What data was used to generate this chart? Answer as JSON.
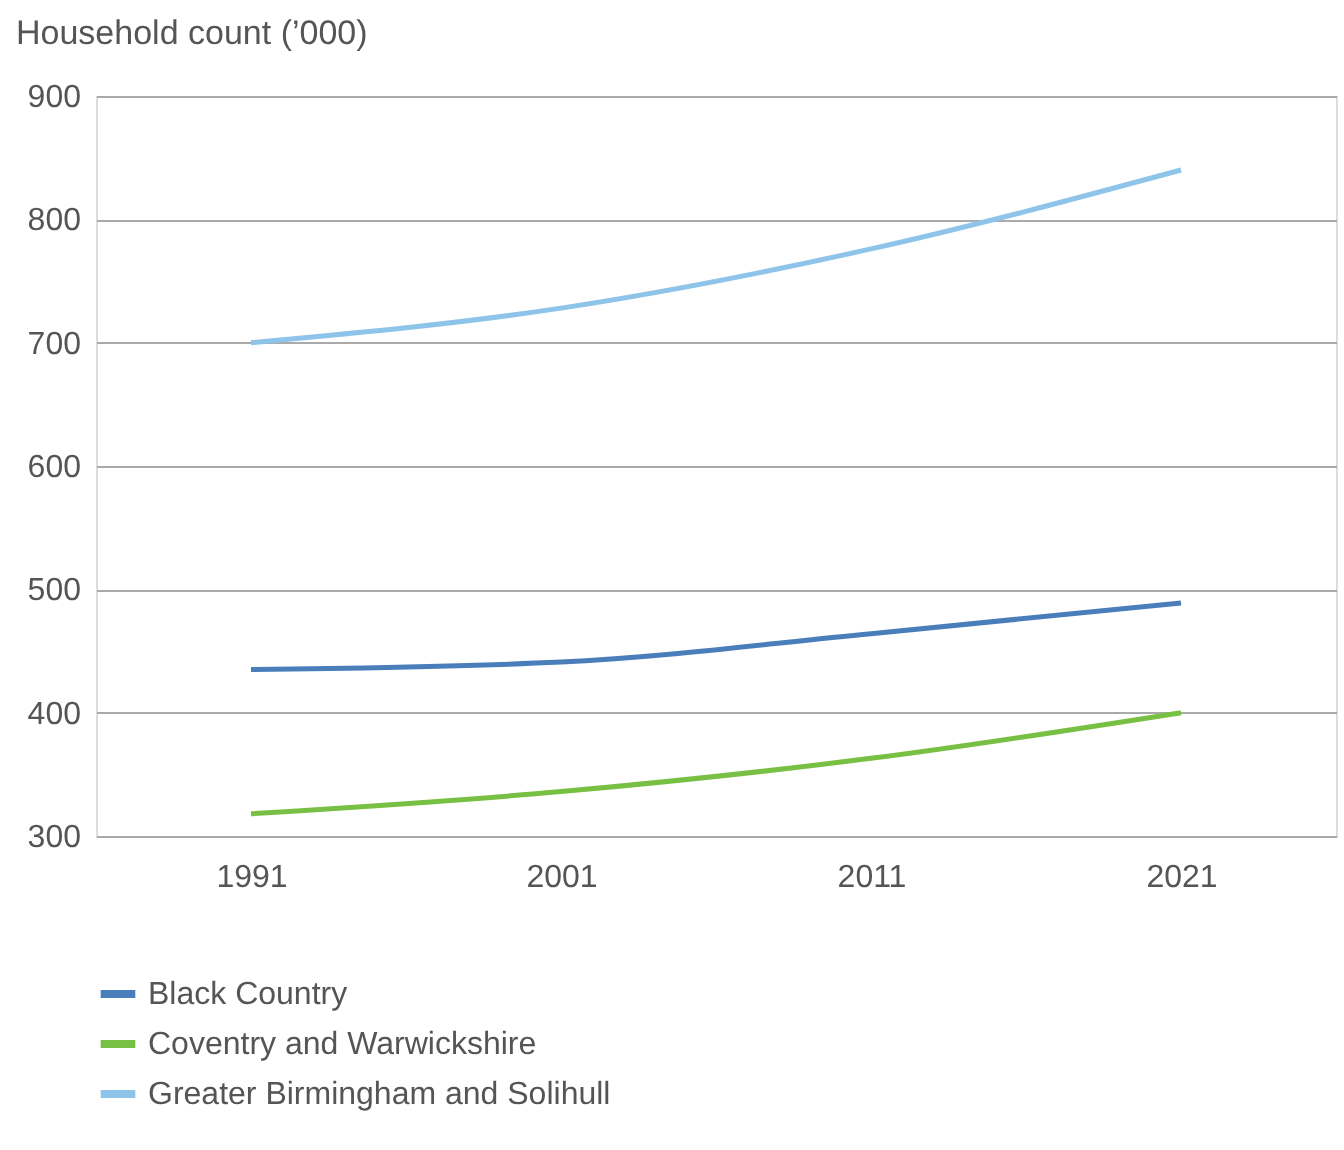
{
  "chart_data": {
    "type": "line",
    "ylabel": "Household count (’000)",
    "categories": [
      "1991",
      "2001",
      "2011",
      "2021"
    ],
    "series": [
      {
        "name": "Black Country",
        "color": "#4a7ebb",
        "values": [
          435,
          441,
          464,
          489
        ]
      },
      {
        "name": "Coventry and Warwickshire",
        "color": "#78c043",
        "values": [
          318,
          336,
          363,
          400
        ]
      },
      {
        "name": "Greater Birmingham and Solihull",
        "color": "#8ec4ea",
        "values": [
          700,
          728,
          776,
          840
        ]
      }
    ],
    "ylim": [
      300,
      900
    ],
    "yticks": [
      300,
      400,
      500,
      600,
      700,
      800,
      900
    ],
    "grid": "y",
    "legend": "bottom",
    "marker": "none",
    "line_style": "solid"
  }
}
